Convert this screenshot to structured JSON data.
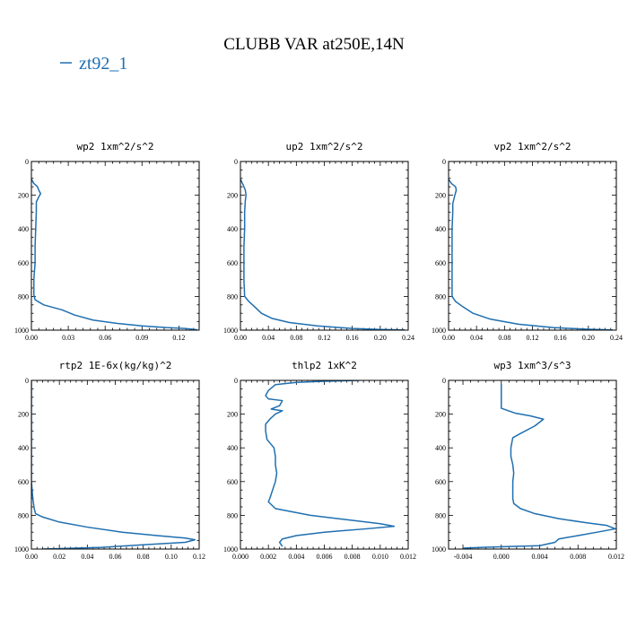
{
  "figure": {
    "title": "CLUBB VAR at250E,14N",
    "legend_label": "zt92_1",
    "line_color": "#1f6fb0"
  },
  "chart_data": [
    {
      "type": "line",
      "title": "wp2  1xm^2/s^2",
      "xlim": [
        0,
        0.1365
      ],
      "ylim": [
        1000,
        0
      ],
      "xticks": [
        0.0,
        0.03,
        0.06,
        0.09,
        0.12
      ],
      "xtick_labels": [
        "0.00",
        "0.03",
        "0.06",
        "0.09",
        "0.12"
      ],
      "yticks": [
        0,
        200,
        400,
        600,
        800,
        1000
      ],
      "ytick_labels": [
        "0",
        "200",
        "400",
        "600",
        "800",
        "1000"
      ],
      "series": [
        {
          "x": [
            0.0,
            0.002,
            0.005,
            0.006,
            0.0075,
            0.006,
            0.004,
            0.004,
            0.0035,
            0.003,
            0.003,
            0.002,
            0.002,
            0.003,
            0.01,
            0.025,
            0.035,
            0.05,
            0.07,
            0.09,
            0.11,
            0.125,
            0.132,
            0.135
          ],
          "y": [
            105,
            130,
            150,
            170,
            190,
            210,
            240,
            300,
            400,
            500,
            600,
            700,
            790,
            820,
            850,
            880,
            910,
            940,
            960,
            975,
            985,
            990,
            995,
            998
          ]
        }
      ]
    },
    {
      "type": "line",
      "title": "up2  1xm^2/s^2",
      "xlim": [
        0,
        0.24
      ],
      "ylim": [
        1000,
        0
      ],
      "xticks": [
        0.0,
        0.04,
        0.08,
        0.12,
        0.16,
        0.2,
        0.24
      ],
      "xtick_labels": [
        "0.00",
        "0.04",
        "0.08",
        "0.12",
        "0.16",
        "0.20",
        "0.24"
      ],
      "yticks": [
        0,
        200,
        400,
        600,
        800,
        1000
      ],
      "ytick_labels": [
        "0",
        "200",
        "400",
        "600",
        "800",
        "1000"
      ],
      "series": [
        {
          "x": [
            0.0,
            0.004,
            0.007,
            0.008,
            0.007,
            0.006,
            0.006,
            0.005,
            0.005,
            0.005,
            0.006,
            0.012,
            0.02,
            0.03,
            0.045,
            0.07,
            0.11,
            0.16,
            0.2,
            0.235
          ],
          "y": [
            105,
            140,
            170,
            200,
            230,
            300,
            400,
            500,
            600,
            700,
            800,
            830,
            860,
            900,
            930,
            955,
            975,
            990,
            996,
            999
          ]
        }
      ]
    },
    {
      "type": "line",
      "title": "vp2  1xm^2/s^2",
      "xlim": [
        0,
        0.24
      ],
      "ylim": [
        1000,
        0
      ],
      "xticks": [
        0.0,
        0.04,
        0.08,
        0.12,
        0.16,
        0.2,
        0.24
      ],
      "xtick_labels": [
        "0.00",
        "0.04",
        "0.08",
        "0.12",
        "0.16",
        "0.20",
        "0.24"
      ],
      "yticks": [
        0,
        200,
        400,
        600,
        800,
        1000
      ],
      "ytick_labels": [
        "0",
        "200",
        "400",
        "600",
        "800",
        "1000"
      ],
      "series": [
        {
          "x": [
            0.0,
            0.004,
            0.01,
            0.011,
            0.009,
            0.006,
            0.006,
            0.005,
            0.005,
            0.005,
            0.005,
            0.01,
            0.02,
            0.035,
            0.06,
            0.1,
            0.15,
            0.2,
            0.235
          ],
          "y": [
            105,
            130,
            150,
            170,
            200,
            250,
            300,
            400,
            500,
            600,
            800,
            830,
            860,
            900,
            935,
            965,
            985,
            995,
            999
          ]
        }
      ]
    },
    {
      "type": "line",
      "title": "rtp2  1E-6x(kg/kg)^2",
      "xlim": [
        0,
        0.12
      ],
      "ylim": [
        1000,
        0
      ],
      "xticks": [
        0.0,
        0.02,
        0.04,
        0.06,
        0.08,
        0.1,
        0.12
      ],
      "xtick_labels": [
        "0.00",
        "0.02",
        "0.04",
        "0.06",
        "0.08",
        "0.10",
        "0.12"
      ],
      "yticks": [
        0,
        200,
        400,
        600,
        800,
        1000
      ],
      "ytick_labels": [
        "0",
        "200",
        "400",
        "600",
        "800",
        "1000"
      ],
      "series": [
        {
          "x": [
            0.0,
            0.0,
            0.0,
            0.001,
            0.002,
            0.003,
            0.008,
            0.02,
            0.04,
            0.065,
            0.09,
            0.11,
            0.117,
            0.11,
            0.08,
            0.05,
            0.02,
            0.008
          ],
          "y": [
            0,
            300,
            600,
            700,
            760,
            790,
            810,
            840,
            870,
            900,
            920,
            935,
            945,
            960,
            975,
            990,
            997,
            1000
          ]
        }
      ]
    },
    {
      "type": "line",
      "title": "thlp2  1xK^2",
      "xlim": [
        0,
        0.012
      ],
      "ylim": [
        1000,
        0
      ],
      "xticks": [
        0.0,
        0.002,
        0.004,
        0.006,
        0.008,
        0.01,
        0.012
      ],
      "xtick_labels": [
        "0.000",
        "0.002",
        "0.004",
        "0.006",
        "0.008",
        "0.010",
        "0.012"
      ],
      "yticks": [
        0,
        200,
        400,
        600,
        800,
        1000
      ],
      "ytick_labels": [
        "0",
        "200",
        "400",
        "600",
        "800",
        "1000"
      ],
      "series": [
        {
          "x": [
            0.0085,
            0.006,
            0.004,
            0.0025,
            0.002,
            0.0018,
            0.002,
            0.003,
            0.0028,
            0.0022,
            0.003,
            0.0025,
            0.0021,
            0.0018,
            0.0018,
            0.0019,
            0.0022,
            0.0024,
            0.0025,
            0.0025,
            0.0026,
            0.0025,
            0.0023,
            0.0021,
            0.002,
            0.0025,
            0.005,
            0.008,
            0.01,
            0.011,
            0.009,
            0.006,
            0.004,
            0.003,
            0.0028,
            0.003
          ],
          "y": [
            0,
            5,
            12,
            25,
            60,
            90,
            110,
            120,
            150,
            170,
            180,
            200,
            230,
            260,
            300,
            350,
            380,
            400,
            450,
            500,
            550,
            600,
            650,
            700,
            720,
            760,
            800,
            830,
            850,
            865,
            880,
            900,
            920,
            940,
            960,
            985
          ]
        }
      ]
    },
    {
      "type": "line",
      "title": "wp3  1xm^3/s^3",
      "xlim": [
        -0.0055,
        0.012
      ],
      "ylim": [
        1000,
        0
      ],
      "xticks": [
        -0.004,
        0.0,
        0.004,
        0.008,
        0.012
      ],
      "xtick_labels": [
        "-0.004",
        "0.000",
        "0.004",
        "0.008",
        "0.012"
      ],
      "yticks": [
        0,
        200,
        400,
        600,
        800,
        1000
      ],
      "ytick_labels": [
        "0",
        "200",
        "400",
        "600",
        "800",
        "1000"
      ],
      "series": [
        {
          "x": [
            0.0,
            0.0,
            0.0,
            0.0015,
            0.003,
            0.0044,
            0.0035,
            0.002,
            0.0012,
            0.001,
            0.001,
            0.0012,
            0.0013,
            0.0012,
            0.0012,
            0.0013,
            0.002,
            0.0035,
            0.006,
            0.009,
            0.011,
            0.0119,
            0.01,
            0.008,
            0.006,
            0.0056,
            0.004,
            0.001,
            -0.002,
            -0.004
          ],
          "y": [
            20,
            100,
            165,
            195,
            210,
            230,
            270,
            315,
            340,
            400,
            450,
            500,
            550,
            600,
            700,
            730,
            760,
            790,
            820,
            845,
            860,
            880,
            900,
            920,
            940,
            960,
            980,
            985,
            990,
            995
          ]
        }
      ]
    }
  ]
}
